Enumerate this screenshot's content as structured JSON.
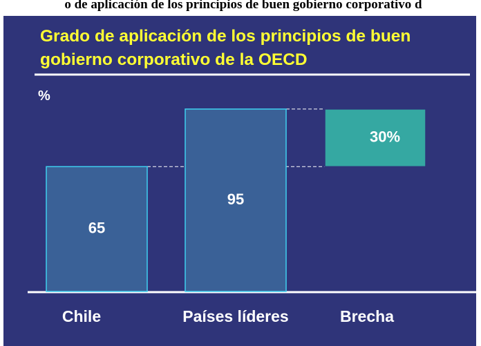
{
  "header": {
    "text": "o de aplicación de los principios de buen gobierno corporativo d"
  },
  "chart_data": {
    "type": "waterfall",
    "title": "Grado de aplicación de los principios de buen gobierno corporativo de la OECD",
    "y_label": "%",
    "categories": [
      "Chile",
      "Países líderes",
      "Brecha"
    ],
    "values": [
      65,
      95,
      30
    ],
    "value_labels": [
      "65",
      "95",
      "30%"
    ],
    "colors": [
      "#3a6197",
      "#3a6197",
      "#35a8a2"
    ],
    "ylim": [
      0,
      100
    ]
  }
}
